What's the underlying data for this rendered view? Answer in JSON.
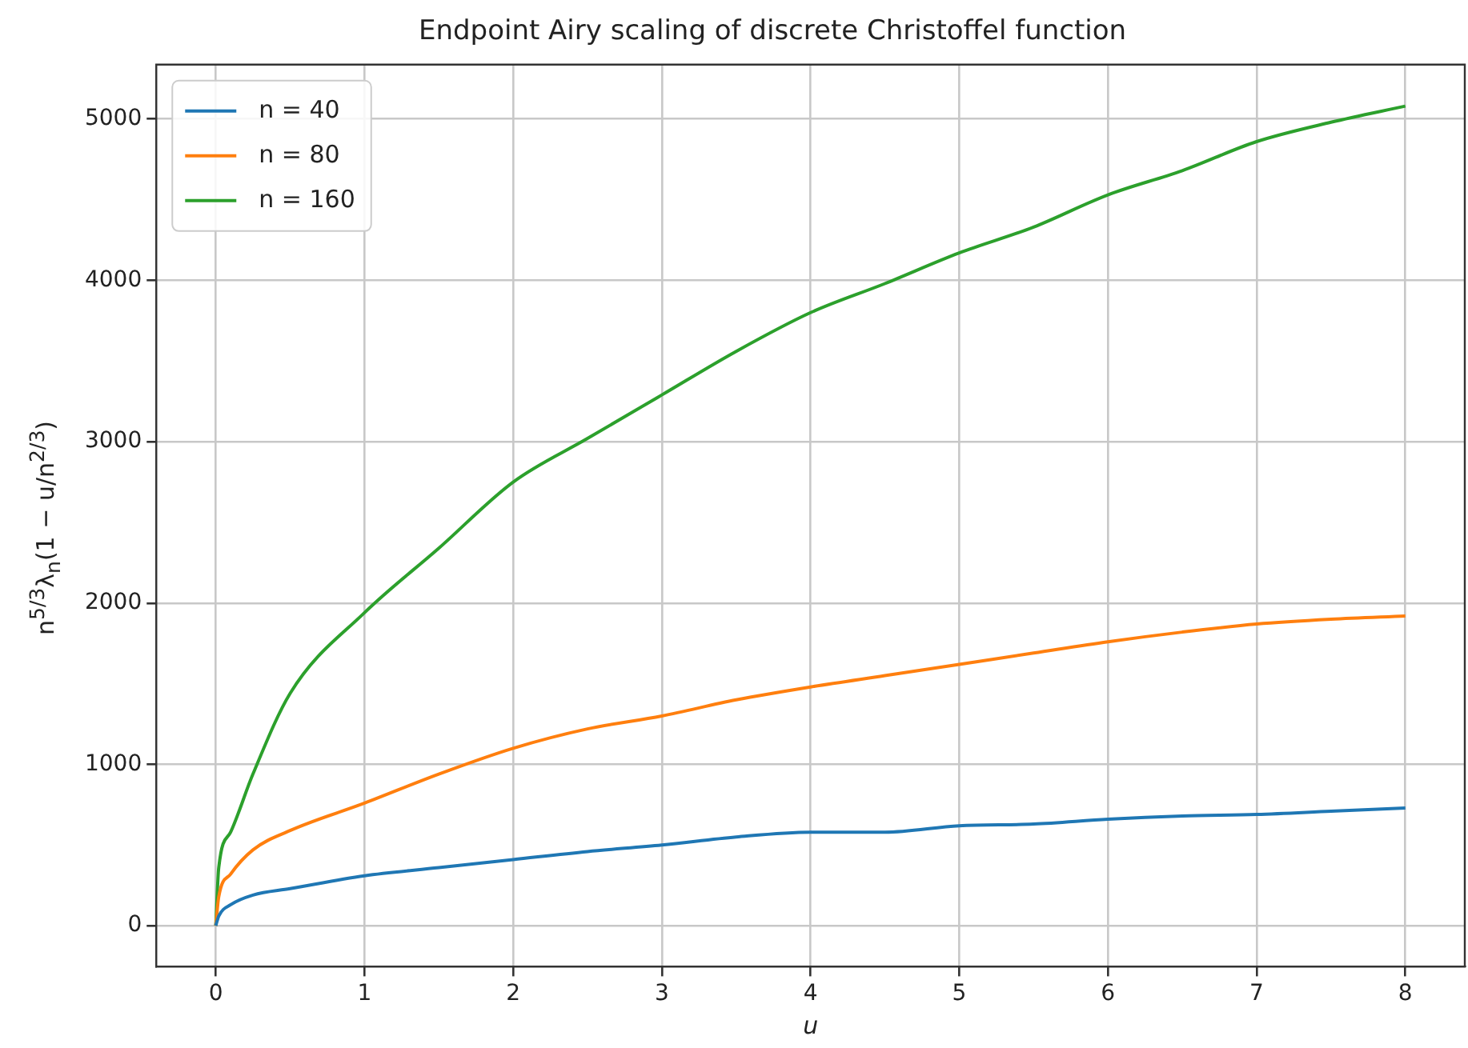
{
  "chart_data": {
    "type": "line",
    "title": "Endpoint Airy scaling of discrete Christoffel function",
    "xlabel": "u",
    "ylabel": "n$^{5/3}$λ$_{n}$(1 − u/n$^{2/3}$)",
    "x": [
      0,
      0.02,
      0.1,
      0.25,
      0.5,
      1,
      1.5,
      2,
      2.5,
      3,
      3.5,
      4,
      4.5,
      5,
      5.5,
      6,
      6.5,
      7,
      7.5,
      8
    ],
    "series": [
      {
        "name": "n = 40",
        "color": "#1f77b4",
        "values": [
          0,
          60,
          130,
          190,
          230,
          310,
          360,
          410,
          460,
          500,
          550,
          580,
          580,
          620,
          630,
          660,
          680,
          690,
          710,
          730
        ]
      },
      {
        "name": "n = 80",
        "color": "#ff7f0e",
        "values": [
          0,
          180,
          320,
          470,
          590,
          760,
          940,
          1100,
          1220,
          1300,
          1400,
          1480,
          1550,
          1620,
          1690,
          1760,
          1820,
          1870,
          1900,
          1920
        ]
      },
      {
        "name": "n = 160",
        "color": "#2ca02c",
        "values": [
          0,
          360,
          580,
          940,
          1440,
          1940,
          2340,
          2750,
          3020,
          3290,
          3560,
          3800,
          3980,
          4170,
          4330,
          4530,
          4680,
          4860,
          4980,
          5080
        ]
      }
    ],
    "xlim": [
      -0.4,
      8.4
    ],
    "ylim": [
      -254,
      5337
    ],
    "xticks": [
      0,
      1,
      2,
      3,
      4,
      5,
      6,
      7,
      8
    ],
    "yticks": [
      0,
      1000,
      2000,
      3000,
      4000,
      5000
    ],
    "grid": true,
    "legend": "top left",
    "marker": "none",
    "line_style": "solid"
  }
}
